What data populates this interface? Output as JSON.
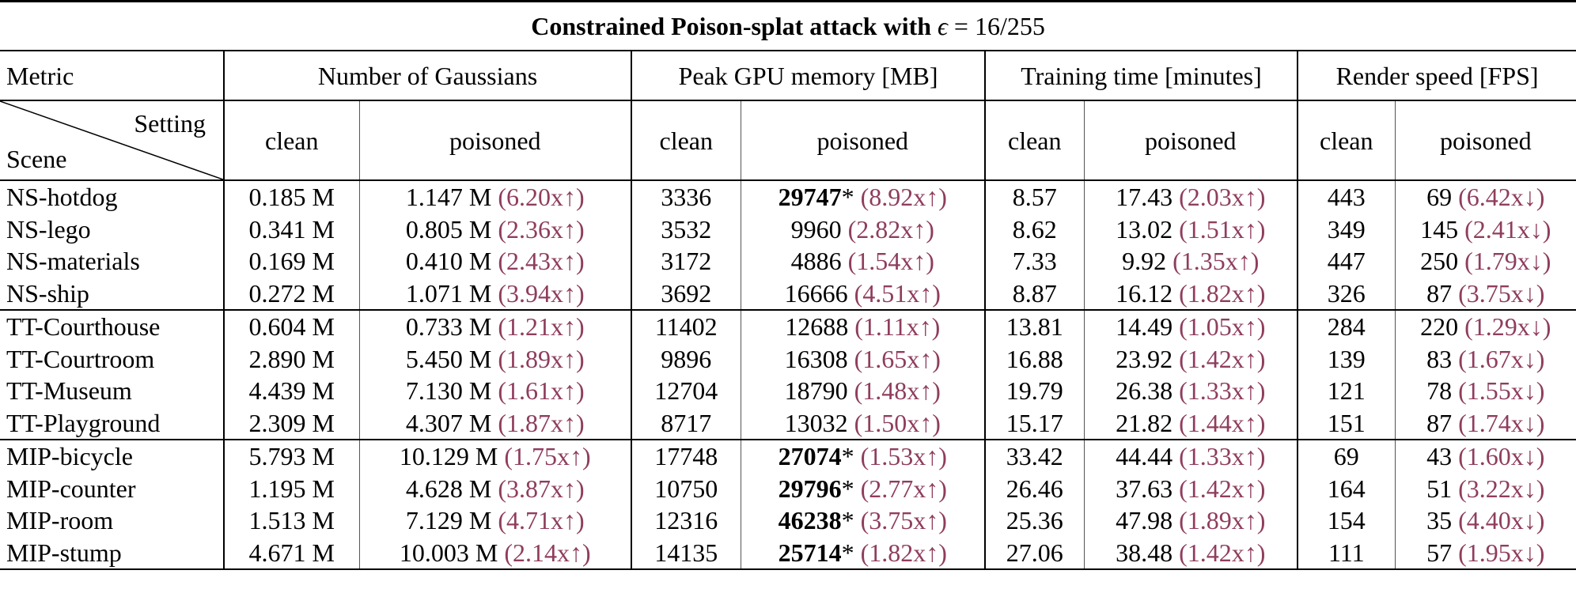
{
  "title": {
    "prefix": "Constrained Poison-splat attack with ",
    "epsilon_symbol": "ϵ",
    "epsilon_value": " = 16/255"
  },
  "headers": {
    "metric_label": "Metric",
    "metrics": [
      "Number of Gaussians",
      "Peak GPU memory [MB]",
      "Training time [minutes]",
      "Render speed [FPS]"
    ],
    "setting_label": "Setting",
    "scene_label": "Scene",
    "clean_label": "clean",
    "poisoned_label": "poisoned"
  },
  "groups": [
    {
      "rows": [
        {
          "scene": "NS-hotdog",
          "gaussians_clean": "0.185 M",
          "gaussians_poisoned": "1.147 M",
          "gaussians_ratio": "(6.20x↑)",
          "memory_clean": "3336",
          "memory_poisoned": "29747",
          "memory_bold": true,
          "memory_star": "*",
          "memory_ratio": "(8.92x↑)",
          "time_clean": "8.57",
          "time_poisoned": "17.43",
          "time_ratio": "(2.03x↑)",
          "fps_clean": "443",
          "fps_poisoned": "69",
          "fps_ratio": "(6.42x↓)"
        },
        {
          "scene": "NS-lego",
          "gaussians_clean": "0.341 M",
          "gaussians_poisoned": "0.805 M",
          "gaussians_ratio": "(2.36x↑)",
          "memory_clean": "3532",
          "memory_poisoned": "9960",
          "memory_bold": false,
          "memory_star": "",
          "memory_ratio": "(2.82x↑)",
          "time_clean": "8.62",
          "time_poisoned": "13.02",
          "time_ratio": "(1.51x↑)",
          "fps_clean": "349",
          "fps_poisoned": "145",
          "fps_ratio": "(2.41x↓)"
        },
        {
          "scene": "NS-materials",
          "gaussians_clean": "0.169 M",
          "gaussians_poisoned": "0.410 M",
          "gaussians_ratio": "(2.43x↑)",
          "memory_clean": "3172",
          "memory_poisoned": "4886",
          "memory_bold": false,
          "memory_star": "",
          "memory_ratio": "(1.54x↑)",
          "time_clean": "7.33",
          "time_poisoned": "9.92",
          "time_ratio": "(1.35x↑)",
          "fps_clean": "447",
          "fps_poisoned": "250",
          "fps_ratio": "(1.79x↓)"
        },
        {
          "scene": "NS-ship",
          "gaussians_clean": "0.272 M",
          "gaussians_poisoned": "1.071 M",
          "gaussians_ratio": "(3.94x↑)",
          "memory_clean": "3692",
          "memory_poisoned": "16666",
          "memory_bold": false,
          "memory_star": "",
          "memory_ratio": "(4.51x↑)",
          "time_clean": "8.87",
          "time_poisoned": "16.12",
          "time_ratio": "(1.82x↑)",
          "fps_clean": "326",
          "fps_poisoned": "87",
          "fps_ratio": "(3.75x↓)"
        }
      ]
    },
    {
      "rows": [
        {
          "scene": "TT-Courthouse",
          "gaussians_clean": "0.604 M",
          "gaussians_poisoned": "0.733 M",
          "gaussians_ratio": "(1.21x↑)",
          "memory_clean": "11402",
          "memory_poisoned": "12688",
          "memory_bold": false,
          "memory_star": "",
          "memory_ratio": "(1.11x↑)",
          "time_clean": "13.81",
          "time_poisoned": "14.49",
          "time_ratio": "(1.05x↑)",
          "fps_clean": "284",
          "fps_poisoned": "220",
          "fps_ratio": "(1.29x↓)"
        },
        {
          "scene": "TT-Courtroom",
          "gaussians_clean": "2.890 M",
          "gaussians_poisoned": "5.450 M",
          "gaussians_ratio": "(1.89x↑)",
          "memory_clean": "9896",
          "memory_poisoned": "16308",
          "memory_bold": false,
          "memory_star": "",
          "memory_ratio": "(1.65x↑)",
          "time_clean": "16.88",
          "time_poisoned": "23.92",
          "time_ratio": "(1.42x↑)",
          "fps_clean": "139",
          "fps_poisoned": "83",
          "fps_ratio": "(1.67x↓)"
        },
        {
          "scene": "TT-Museum",
          "gaussians_clean": "4.439 M",
          "gaussians_poisoned": "7.130 M",
          "gaussians_ratio": "(1.61x↑)",
          "memory_clean": "12704",
          "memory_poisoned": "18790",
          "memory_bold": false,
          "memory_star": "",
          "memory_ratio": "(1.48x↑)",
          "time_clean": "19.79",
          "time_poisoned": "26.38",
          "time_ratio": "(1.33x↑)",
          "fps_clean": "121",
          "fps_poisoned": "78",
          "fps_ratio": "(1.55x↓)"
        },
        {
          "scene": "TT-Playground",
          "gaussians_clean": "2.309 M",
          "gaussians_poisoned": "4.307 M",
          "gaussians_ratio": "(1.87x↑)",
          "memory_clean": "8717",
          "memory_poisoned": "13032",
          "memory_bold": false,
          "memory_star": "",
          "memory_ratio": "(1.50x↑)",
          "time_clean": "15.17",
          "time_poisoned": "21.82",
          "time_ratio": "(1.44x↑)",
          "fps_clean": "151",
          "fps_poisoned": "87",
          "fps_ratio": "(1.74x↓)"
        }
      ]
    },
    {
      "rows": [
        {
          "scene": "MIP-bicycle",
          "gaussians_clean": "5.793 M",
          "gaussians_poisoned": "10.129 M",
          "gaussians_ratio": "(1.75x↑)",
          "memory_clean": "17748",
          "memory_poisoned": "27074",
          "memory_bold": true,
          "memory_star": "*",
          "memory_ratio": "(1.53x↑)",
          "time_clean": "33.42",
          "time_poisoned": "44.44",
          "time_ratio": "(1.33x↑)",
          "fps_clean": "69",
          "fps_poisoned": "43",
          "fps_ratio": "(1.60x↓)"
        },
        {
          "scene": "MIP-counter",
          "gaussians_clean": "1.195 M",
          "gaussians_poisoned": "4.628 M",
          "gaussians_ratio": "(3.87x↑)",
          "memory_clean": "10750",
          "memory_poisoned": "29796",
          "memory_bold": true,
          "memory_star": "*",
          "memory_ratio": "(2.77x↑)",
          "time_clean": "26.46",
          "time_poisoned": "37.63",
          "time_ratio": "(1.42x↑)",
          "fps_clean": "164",
          "fps_poisoned": "51",
          "fps_ratio": "(3.22x↓)"
        },
        {
          "scene": "MIP-room",
          "gaussians_clean": "1.513 M",
          "gaussians_poisoned": "7.129 M",
          "gaussians_ratio": "(4.71x↑)",
          "memory_clean": "12316",
          "memory_poisoned": "46238",
          "memory_bold": true,
          "memory_star": "*",
          "memory_ratio": "(3.75x↑)",
          "time_clean": "25.36",
          "time_poisoned": "47.98",
          "time_ratio": "(1.89x↑)",
          "fps_clean": "154",
          "fps_poisoned": "35",
          "fps_ratio": "(4.40x↓)"
        },
        {
          "scene": "MIP-stump",
          "gaussians_clean": "4.671 M",
          "gaussians_poisoned": "10.003 M",
          "gaussians_ratio": "(2.14x↑)",
          "memory_clean": "14135",
          "memory_poisoned": "25714",
          "memory_bold": true,
          "memory_star": "*",
          "memory_ratio": "(1.82x↑)",
          "time_clean": "27.06",
          "time_poisoned": "38.48",
          "time_ratio": "(1.42x↑)",
          "fps_clean": "111",
          "fps_poisoned": "57",
          "fps_ratio": "(1.95x↓)"
        }
      ]
    }
  ],
  "colors": {
    "ratio_text": "#8f3d5d",
    "text": "#000000",
    "rules": "#000000"
  }
}
